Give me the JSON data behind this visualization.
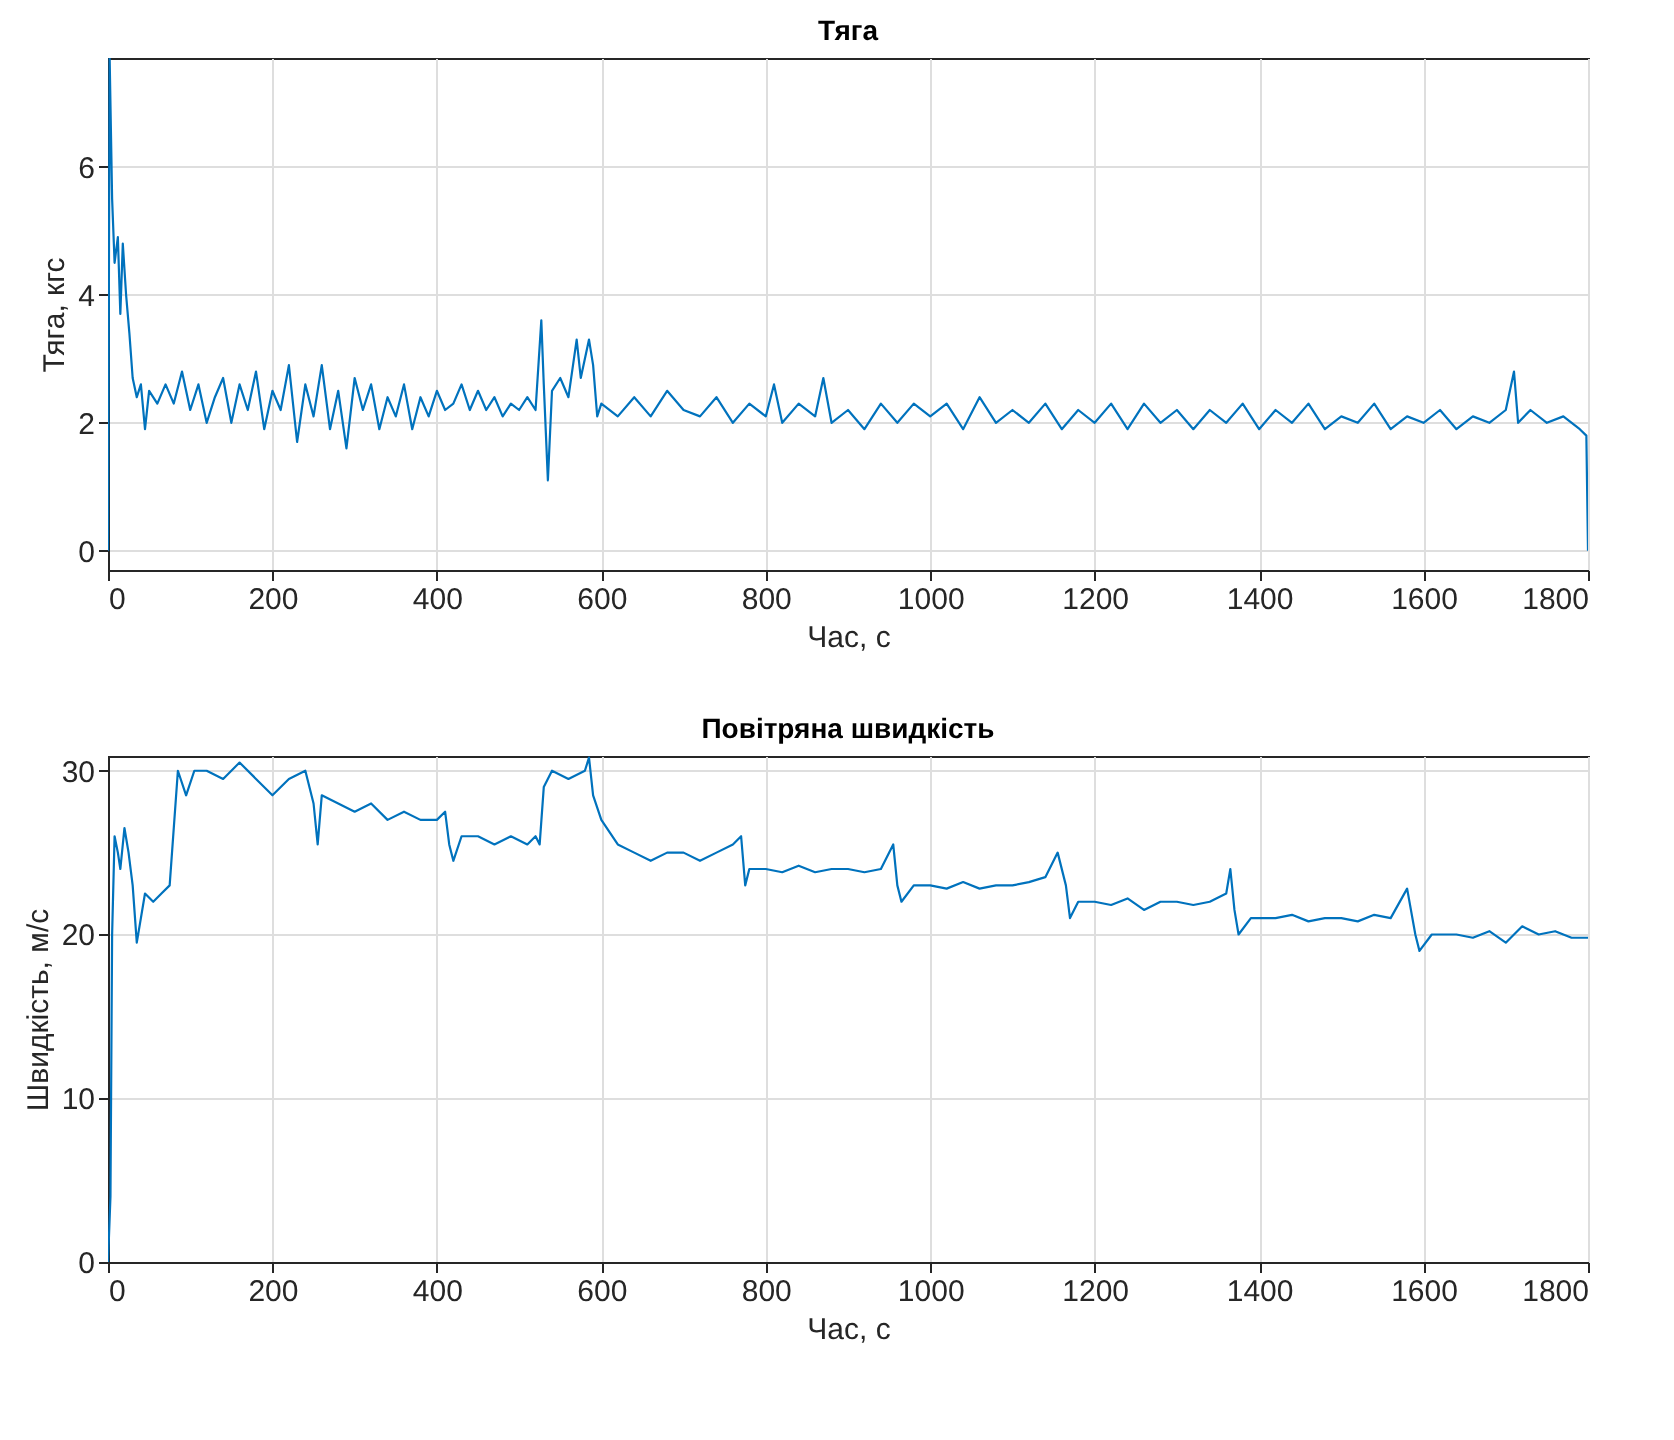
{
  "chart_data": [
    {
      "type": "line",
      "title": "Тяга",
      "xlabel": "Час, с",
      "ylabel": "Тяга, кгс",
      "xlim": [
        0,
        1800
      ],
      "xticks": [
        0,
        200,
        400,
        600,
        800,
        1000,
        1200,
        1400,
        1600,
        1800
      ],
      "ylim": [
        -0.3,
        7.7
      ],
      "yticks": [
        0,
        2,
        4,
        6
      ],
      "grid": true,
      "line_style": "solid",
      "x": [
        0,
        2,
        5,
        8,
        12,
        15,
        18,
        22,
        26,
        30,
        35,
        40,
        45,
        50,
        60,
        70,
        80,
        90,
        100,
        110,
        120,
        130,
        140,
        150,
        160,
        170,
        180,
        190,
        200,
        210,
        220,
        230,
        240,
        250,
        260,
        270,
        280,
        290,
        300,
        310,
        320,
        330,
        340,
        350,
        360,
        370,
        380,
        390,
        400,
        410,
        420,
        430,
        440,
        450,
        460,
        470,
        480,
        490,
        500,
        510,
        520,
        527,
        530,
        535,
        540,
        550,
        560,
        570,
        575,
        585,
        590,
        595,
        600,
        620,
        640,
        660,
        680,
        700,
        720,
        740,
        760,
        780,
        800,
        810,
        820,
        840,
        860,
        870,
        880,
        900,
        920,
        940,
        960,
        980,
        1000,
        1020,
        1040,
        1060,
        1080,
        1100,
        1120,
        1140,
        1160,
        1180,
        1200,
        1220,
        1240,
        1260,
        1280,
        1300,
        1320,
        1340,
        1360,
        1380,
        1400,
        1420,
        1440,
        1460,
        1480,
        1500,
        1520,
        1540,
        1560,
        1580,
        1600,
        1620,
        1640,
        1660,
        1680,
        1700,
        1710,
        1715,
        1730,
        1750,
        1770,
        1790,
        1798,
        1800
      ],
      "series": [
        {
          "color": "#0072bd",
          "values": [
            0,
            7.7,
            5.5,
            4.5,
            4.9,
            3.7,
            4.8,
            4.0,
            3.4,
            2.7,
            2.4,
            2.6,
            1.9,
            2.5,
            2.3,
            2.6,
            2.3,
            2.8,
            2.2,
            2.6,
            2.0,
            2.4,
            2.7,
            2.0,
            2.6,
            2.2,
            2.8,
            1.9,
            2.5,
            2.2,
            2.9,
            1.7,
            2.6,
            2.1,
            2.9,
            1.9,
            2.5,
            1.6,
            2.7,
            2.2,
            2.6,
            1.9,
            2.4,
            2.1,
            2.6,
            1.9,
            2.4,
            2.1,
            2.5,
            2.2,
            2.3,
            2.6,
            2.2,
            2.5,
            2.2,
            2.4,
            2.1,
            2.3,
            2.2,
            2.4,
            2.2,
            3.6,
            2.6,
            1.1,
            2.5,
            2.7,
            2.4,
            3.3,
            2.7,
            3.3,
            2.9,
            2.1,
            2.3,
            2.1,
            2.4,
            2.1,
            2.5,
            2.2,
            2.1,
            2.4,
            2.0,
            2.3,
            2.1,
            2.6,
            2.0,
            2.3,
            2.1,
            2.7,
            2.0,
            2.2,
            1.9,
            2.3,
            2.0,
            2.3,
            2.1,
            2.3,
            1.9,
            2.4,
            2.0,
            2.2,
            2.0,
            2.3,
            1.9,
            2.2,
            2.0,
            2.3,
            1.9,
            2.3,
            2.0,
            2.2,
            1.9,
            2.2,
            2.0,
            2.3,
            1.9,
            2.2,
            2.0,
            2.3,
            1.9,
            2.1,
            2.0,
            2.3,
            1.9,
            2.1,
            2.0,
            2.2,
            1.9,
            2.1,
            2.0,
            2.2,
            2.8,
            2.0,
            2.2,
            2.0,
            2.1,
            1.9,
            1.8,
            0
          ]
        }
      ]
    },
    {
      "type": "line",
      "title": "Повітряна швидкість",
      "xlabel": "Час, с",
      "ylabel": "Швидкість, м/с",
      "xlim": [
        0,
        1800
      ],
      "xticks": [
        0,
        200,
        400,
        600,
        800,
        1000,
        1200,
        1400,
        1600,
        1800
      ],
      "ylim": [
        0,
        30.9
      ],
      "yticks": [
        0,
        10,
        20,
        30
      ],
      "grid": true,
      "line_style": "solid",
      "x": [
        0,
        3,
        5,
        8,
        12,
        15,
        20,
        25,
        30,
        35,
        40,
        45,
        55,
        65,
        75,
        85,
        95,
        105,
        120,
        140,
        160,
        180,
        200,
        220,
        240,
        250,
        255,
        260,
        280,
        300,
        320,
        340,
        360,
        380,
        400,
        410,
        415,
        420,
        430,
        450,
        470,
        490,
        510,
        520,
        525,
        530,
        540,
        560,
        580,
        585,
        590,
        600,
        620,
        640,
        660,
        680,
        700,
        720,
        740,
        760,
        770,
        775,
        780,
        800,
        820,
        840,
        860,
        880,
        900,
        920,
        940,
        955,
        960,
        965,
        980,
        1000,
        1020,
        1040,
        1060,
        1080,
        1100,
        1120,
        1140,
        1155,
        1165,
        1170,
        1180,
        1200,
        1220,
        1240,
        1260,
        1280,
        1300,
        1320,
        1340,
        1360,
        1365,
        1370,
        1375,
        1390,
        1420,
        1440,
        1460,
        1480,
        1500,
        1520,
        1540,
        1560,
        1580,
        1590,
        1595,
        1610,
        1640,
        1660,
        1680,
        1700,
        1720,
        1740,
        1760,
        1780,
        1800
      ],
      "series": [
        {
          "color": "#0072bd",
          "values": [
            0,
            4,
            20,
            26,
            25,
            24,
            26.5,
            25,
            23,
            19.5,
            21,
            22.5,
            22,
            22.5,
            23,
            30,
            28.5,
            30,
            30,
            29.5,
            30.5,
            29.5,
            28.5,
            29.5,
            30,
            28,
            25.5,
            28.5,
            28,
            27.5,
            28,
            27,
            27.5,
            27,
            27,
            27.5,
            25.5,
            24.5,
            26,
            26,
            25.5,
            26,
            25.5,
            26,
            25.5,
            29,
            30,
            29.5,
            30,
            30.8,
            28.5,
            27,
            25.5,
            25,
            24.5,
            25,
            25,
            24.5,
            25,
            25.5,
            26,
            23,
            24,
            24,
            23.8,
            24.2,
            23.8,
            24,
            24,
            23.8,
            24,
            25.5,
            23,
            22,
            23,
            23,
            22.8,
            23.2,
            22.8,
            23,
            23,
            23.2,
            23.5,
            25,
            23,
            21,
            22,
            22,
            21.8,
            22.2,
            21.5,
            22,
            22,
            21.8,
            22,
            22.5,
            24,
            21.5,
            20,
            21,
            21,
            21.2,
            20.8,
            21,
            21,
            20.8,
            21.2,
            21,
            22.8,
            20,
            19,
            20,
            20,
            19.8,
            20.2,
            19.5,
            20.5,
            20,
            20.2,
            19.8,
            19.8
          ]
        }
      ]
    }
  ]
}
